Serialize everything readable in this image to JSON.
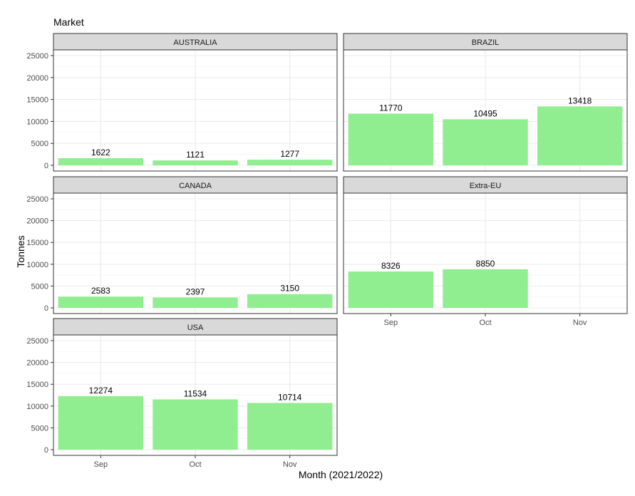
{
  "chart_data": {
    "type": "bar",
    "legend_title": "Market",
    "xlabel": "Month (2021/2022)",
    "ylabel": "Tonnes",
    "categories": [
      "Sep",
      "Oct",
      "Nov"
    ],
    "ylim": [
      0,
      26000
    ],
    "yticks": [
      0,
      5000,
      10000,
      15000,
      20000,
      25000
    ],
    "grid": true,
    "bar_color": "#90EE90",
    "strip_color": "#D9D9D9",
    "panels": [
      {
        "name": "AUSTRALIA",
        "values": [
          1622,
          1121,
          1277
        ]
      },
      {
        "name": "BRAZIL",
        "values": [
          11770,
          10495,
          13418
        ]
      },
      {
        "name": "CANADA",
        "values": [
          2583,
          2397,
          3150
        ]
      },
      {
        "name": "Extra-EU",
        "values": [
          8326,
          8850,
          null
        ]
      },
      {
        "name": "USA",
        "values": [
          12274,
          11534,
          10714
        ]
      }
    ]
  }
}
